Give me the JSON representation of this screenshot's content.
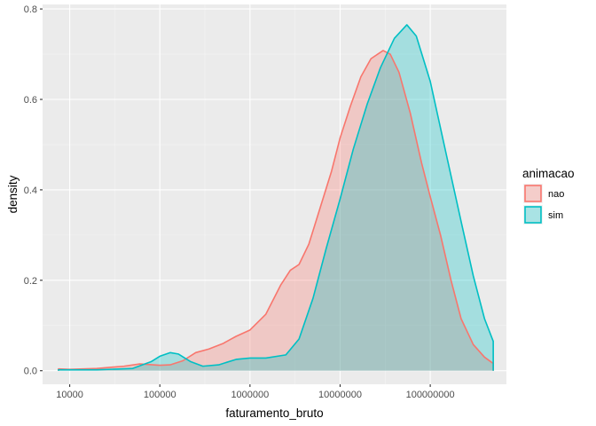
{
  "chart_data": {
    "type": "area",
    "xlabel": "faturamento_bruto",
    "ylabel": "density",
    "x_scale": "log10",
    "xlim": [
      5000,
      700000000
    ],
    "ylim": [
      -0.03,
      0.81
    ],
    "x_ticks": [
      10000,
      100000,
      1000000,
      10000000,
      100000000
    ],
    "x_tick_labels": [
      "10000",
      "100000",
      "1000000",
      "10000000",
      "100000000"
    ],
    "y_ticks": [
      0.0,
      0.2,
      0.4,
      0.6,
      0.8
    ],
    "y_tick_labels": [
      "0.0",
      "0.2",
      "0.4",
      "0.6",
      "0.8"
    ],
    "grid": true,
    "legend": {
      "title": "animacao",
      "position": "right"
    },
    "series": [
      {
        "name": "nao",
        "color": "#F8766D",
        "fill_opacity": 0.3,
        "points": [
          [
            7500,
            0.004
          ],
          [
            10000,
            0.003
          ],
          [
            20000,
            0.005
          ],
          [
            40000,
            0.01
          ],
          [
            60000,
            0.015
          ],
          [
            100000,
            0.012
          ],
          [
            130000,
            0.013
          ],
          [
            180000,
            0.022
          ],
          [
            250000,
            0.04
          ],
          [
            350000,
            0.048
          ],
          [
            500000,
            0.06
          ],
          [
            700000,
            0.076
          ],
          [
            1000000,
            0.09
          ],
          [
            1500000,
            0.125
          ],
          [
            2200000,
            0.19
          ],
          [
            2800000,
            0.222
          ],
          [
            3500000,
            0.235
          ],
          [
            4500000,
            0.28
          ],
          [
            6000000,
            0.36
          ],
          [
            8000000,
            0.44
          ],
          [
            10000000,
            0.515
          ],
          [
            13000000,
            0.585
          ],
          [
            17000000,
            0.65
          ],
          [
            22000000,
            0.69
          ],
          [
            30000000,
            0.708
          ],
          [
            36000000,
            0.7
          ],
          [
            45000000,
            0.66
          ],
          [
            60000000,
            0.57
          ],
          [
            80000000,
            0.46
          ],
          [
            100000000,
            0.385
          ],
          [
            130000000,
            0.3
          ],
          [
            170000000,
            0.2
          ],
          [
            220000000,
            0.115
          ],
          [
            300000000,
            0.058
          ],
          [
            400000000,
            0.03
          ],
          [
            500000000,
            0.016
          ]
        ]
      },
      {
        "name": "sim",
        "color": "#00BFC4",
        "fill_opacity": 0.3,
        "points": [
          [
            7500,
            0.002
          ],
          [
            20000,
            0.002
          ],
          [
            50000,
            0.005
          ],
          [
            80000,
            0.02
          ],
          [
            100000,
            0.032
          ],
          [
            130000,
            0.04
          ],
          [
            160000,
            0.037
          ],
          [
            220000,
            0.02
          ],
          [
            300000,
            0.01
          ],
          [
            450000,
            0.013
          ],
          [
            700000,
            0.025
          ],
          [
            1000000,
            0.028
          ],
          [
            1500000,
            0.028
          ],
          [
            2500000,
            0.035
          ],
          [
            3500000,
            0.07
          ],
          [
            5000000,
            0.16
          ],
          [
            7000000,
            0.27
          ],
          [
            10000000,
            0.38
          ],
          [
            14000000,
            0.49
          ],
          [
            20000000,
            0.59
          ],
          [
            28000000,
            0.67
          ],
          [
            40000000,
            0.735
          ],
          [
            55000000,
            0.765
          ],
          [
            70000000,
            0.74
          ],
          [
            100000000,
            0.64
          ],
          [
            150000000,
            0.48
          ],
          [
            220000000,
            0.33
          ],
          [
            300000000,
            0.21
          ],
          [
            400000000,
            0.115
          ],
          [
            500000000,
            0.065
          ]
        ]
      }
    ]
  }
}
